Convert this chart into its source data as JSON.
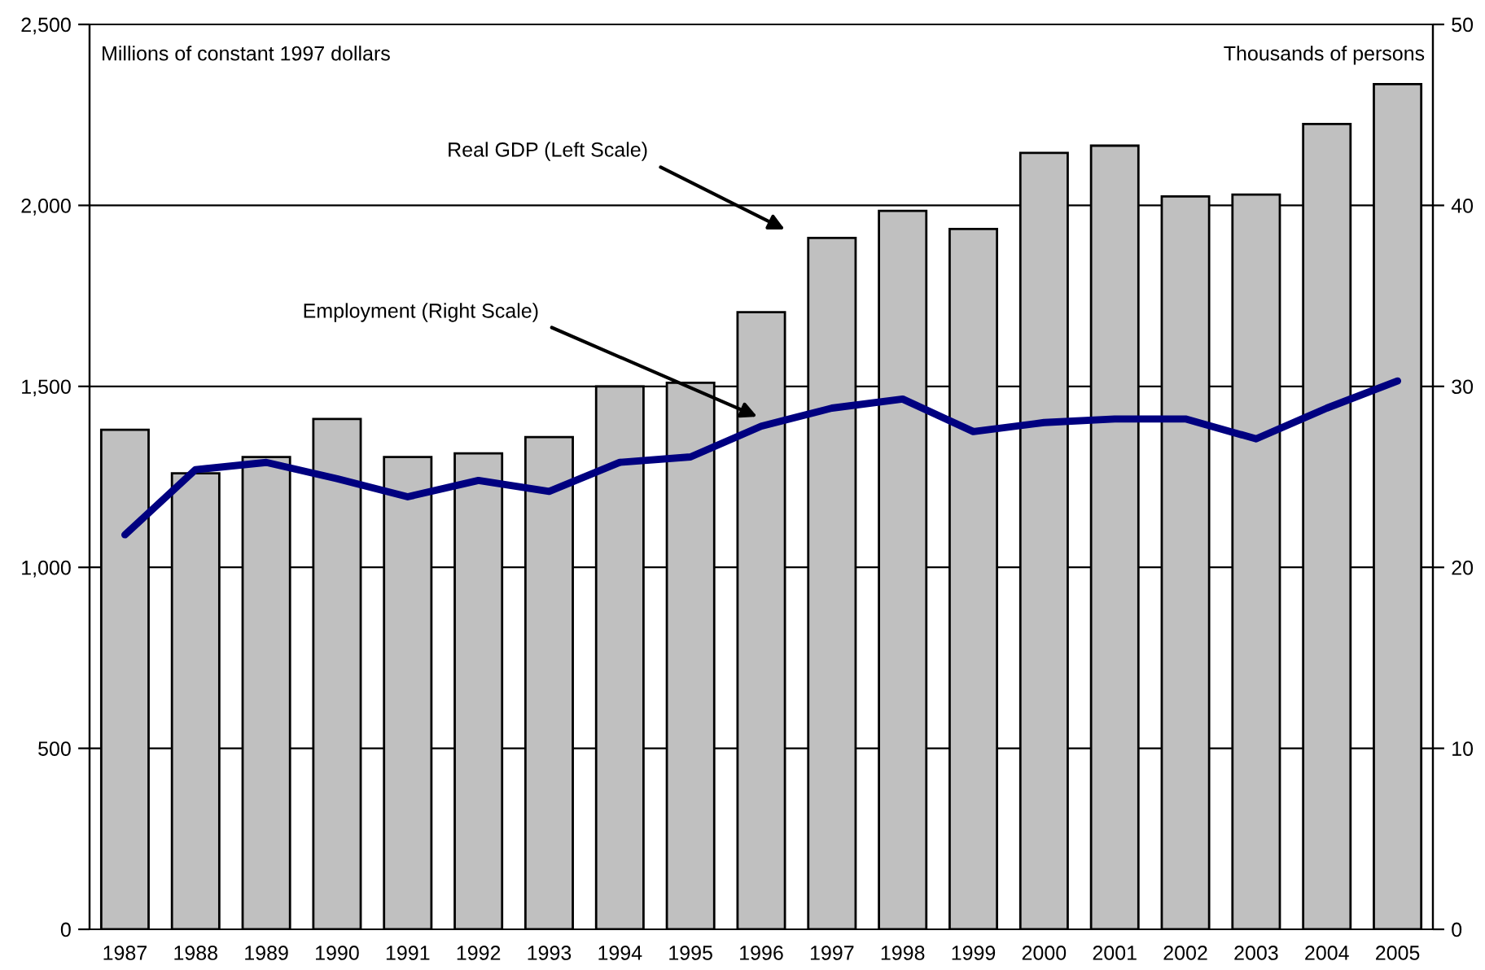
{
  "chart_data": {
    "type": "bar",
    "ylabel": "Millions of constant 1997 dollars",
    "y2label": "Thousands of persons",
    "annotations": [
      "Real GDP (Left Scale)",
      "Employment (Right Scale)"
    ],
    "categories": [
      "1987",
      "1988",
      "1989",
      "1990",
      "1991",
      "1992",
      "1993",
      "1994",
      "1995",
      "1996",
      "1997",
      "1998",
      "1999",
      "2000",
      "2001",
      "2002",
      "2003",
      "2004",
      "2005"
    ],
    "series": [
      {
        "color": "#c0c0c0",
        "values": [
          1380,
          1260,
          1305,
          1410,
          1305,
          1315,
          1360,
          1500,
          1510,
          1705,
          1910,
          1985,
          1935,
          2145,
          2165,
          2025,
          2030,
          2225,
          2335
        ]
      },
      {
        "type": "line",
        "axis": "y2",
        "color": "#000080",
        "values": [
          21.8,
          25.4,
          25.8,
          24.9,
          23.9,
          24.8,
          24.2,
          25.8,
          26.1,
          27.8,
          28.8,
          29.3,
          27.5,
          28.0,
          28.2,
          28.2,
          27.1,
          28.8,
          30.3
        ]
      }
    ],
    "ylim": [
      0,
      2500
    ],
    "yticks": [
      0,
      500,
      {
        "value": 1000,
        "label": "1,000"
      },
      {
        "value": 1500,
        "label": "1,500"
      },
      {
        "value": 2000,
        "label": "2,000"
      },
      {
        "value": 2500,
        "label": "2,500"
      }
    ],
    "y2lim": [
      0,
      50
    ],
    "y2ticks": [
      0,
      10,
      20,
      30,
      40,
      50
    ],
    "grid": "y"
  }
}
